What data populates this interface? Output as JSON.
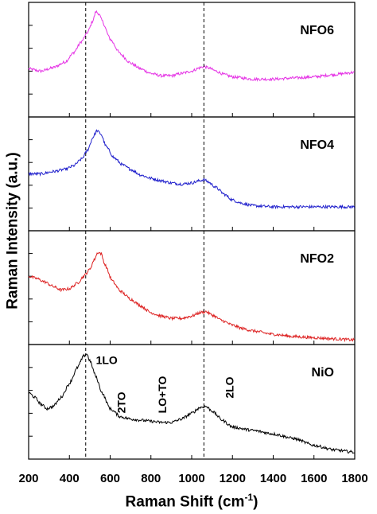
{
  "chart_data": {
    "type": "line",
    "layout": "stacked-panels",
    "xlabel": "Raman Shift (cm",
    "xlabel_sup": "-1",
    "xlabel_close": ")",
    "ylabel": "Raman Intensity (a.u.)",
    "xlim": [
      200,
      1800
    ],
    "x_ticks": [
      200,
      400,
      600,
      800,
      1000,
      1200,
      1400,
      1600,
      1800
    ],
    "reference_lines_x": [
      480,
      1060
    ],
    "panels": [
      {
        "name": "NFO6",
        "color": "#e533e5",
        "ylim": [
          0,
          1
        ],
        "points": [
          [
            200,
            0.42
          ],
          [
            260,
            0.4
          ],
          [
            320,
            0.43
          ],
          [
            380,
            0.48
          ],
          [
            420,
            0.56
          ],
          [
            460,
            0.66
          ],
          [
            490,
            0.74
          ],
          [
            515,
            0.84
          ],
          [
            530,
            0.92
          ],
          [
            545,
            0.9
          ],
          [
            560,
            0.84
          ],
          [
            600,
            0.68
          ],
          [
            650,
            0.55
          ],
          [
            700,
            0.47
          ],
          [
            750,
            0.42
          ],
          [
            800,
            0.38
          ],
          [
            850,
            0.36
          ],
          [
            900,
            0.36
          ],
          [
            950,
            0.38
          ],
          [
            1000,
            0.4
          ],
          [
            1040,
            0.43
          ],
          [
            1060,
            0.44
          ],
          [
            1080,
            0.43
          ],
          [
            1120,
            0.4
          ],
          [
            1160,
            0.37
          ],
          [
            1200,
            0.35
          ],
          [
            1300,
            0.33
          ],
          [
            1400,
            0.33
          ],
          [
            1500,
            0.34
          ],
          [
            1600,
            0.35
          ],
          [
            1700,
            0.37
          ],
          [
            1800,
            0.39
          ]
        ]
      },
      {
        "name": "NFO4",
        "color": "#2020cc",
        "ylim": [
          0,
          1
        ],
        "points": [
          [
            200,
            0.5
          ],
          [
            260,
            0.5
          ],
          [
            320,
            0.52
          ],
          [
            380,
            0.54
          ],
          [
            420,
            0.57
          ],
          [
            460,
            0.63
          ],
          [
            490,
            0.71
          ],
          [
            515,
            0.82
          ],
          [
            535,
            0.88
          ],
          [
            555,
            0.85
          ],
          [
            580,
            0.74
          ],
          [
            620,
            0.64
          ],
          [
            660,
            0.58
          ],
          [
            700,
            0.54
          ],
          [
            750,
            0.49
          ],
          [
            800,
            0.46
          ],
          [
            850,
            0.44
          ],
          [
            900,
            0.42
          ],
          [
            950,
            0.41
          ],
          [
            1000,
            0.42
          ],
          [
            1040,
            0.44
          ],
          [
            1060,
            0.45
          ],
          [
            1080,
            0.43
          ],
          [
            1120,
            0.38
          ],
          [
            1160,
            0.32
          ],
          [
            1200,
            0.27
          ],
          [
            1250,
            0.24
          ],
          [
            1300,
            0.22
          ],
          [
            1400,
            0.21
          ],
          [
            1500,
            0.21
          ],
          [
            1600,
            0.21
          ],
          [
            1700,
            0.21
          ],
          [
            1800,
            0.21
          ]
        ]
      },
      {
        "name": "NFO2",
        "color": "#dd2222",
        "ylim": [
          0,
          1
        ],
        "points": [
          [
            200,
            0.6
          ],
          [
            240,
            0.58
          ],
          [
            280,
            0.55
          ],
          [
            320,
            0.51
          ],
          [
            360,
            0.48
          ],
          [
            400,
            0.49
          ],
          [
            440,
            0.54
          ],
          [
            470,
            0.6
          ],
          [
            500,
            0.66
          ],
          [
            520,
            0.74
          ],
          [
            540,
            0.81
          ],
          [
            555,
            0.8
          ],
          [
            575,
            0.7
          ],
          [
            610,
            0.56
          ],
          [
            650,
            0.47
          ],
          [
            700,
            0.4
          ],
          [
            750,
            0.34
          ],
          [
            800,
            0.28
          ],
          [
            850,
            0.25
          ],
          [
            900,
            0.23
          ],
          [
            950,
            0.23
          ],
          [
            1000,
            0.25
          ],
          [
            1040,
            0.28
          ],
          [
            1070,
            0.29
          ],
          [
            1100,
            0.26
          ],
          [
            1150,
            0.21
          ],
          [
            1200,
            0.17
          ],
          [
            1250,
            0.14
          ],
          [
            1300,
            0.12
          ],
          [
            1400,
            0.09
          ],
          [
            1500,
            0.07
          ],
          [
            1600,
            0.06
          ],
          [
            1700,
            0.05
          ],
          [
            1800,
            0.04
          ]
        ]
      },
      {
        "name": "NiO",
        "color": "#000000",
        "ylim": [
          0,
          1
        ],
        "points": [
          [
            200,
            0.58
          ],
          [
            230,
            0.54
          ],
          [
            260,
            0.48
          ],
          [
            290,
            0.44
          ],
          [
            320,
            0.46
          ],
          [
            360,
            0.54
          ],
          [
            400,
            0.66
          ],
          [
            440,
            0.8
          ],
          [
            470,
            0.9
          ],
          [
            485,
            0.92
          ],
          [
            500,
            0.86
          ],
          [
            530,
            0.72
          ],
          [
            560,
            0.58
          ],
          [
            600,
            0.44
          ],
          [
            650,
            0.37
          ],
          [
            700,
            0.35
          ],
          [
            750,
            0.34
          ],
          [
            800,
            0.33
          ],
          [
            850,
            0.32
          ],
          [
            900,
            0.32
          ],
          [
            950,
            0.35
          ],
          [
            1000,
            0.4
          ],
          [
            1040,
            0.45
          ],
          [
            1070,
            0.46
          ],
          [
            1100,
            0.42
          ],
          [
            1150,
            0.34
          ],
          [
            1200,
            0.28
          ],
          [
            1300,
            0.25
          ],
          [
            1400,
            0.22
          ],
          [
            1500,
            0.18
          ],
          [
            1600,
            0.12
          ],
          [
            1700,
            0.08
          ],
          [
            1800,
            0.06
          ]
        ]
      }
    ],
    "annotations": [
      {
        "text": "1LO",
        "x": 530,
        "y": 0.83,
        "rotated": false
      },
      {
        "text": "2TO",
        "x": 675,
        "y": 0.4,
        "rotated": true
      },
      {
        "text": "LO+TO",
        "x": 875,
        "y": 0.4,
        "rotated": true
      },
      {
        "text": "2LO",
        "x": 1205,
        "y": 0.53,
        "rotated": true
      }
    ]
  }
}
